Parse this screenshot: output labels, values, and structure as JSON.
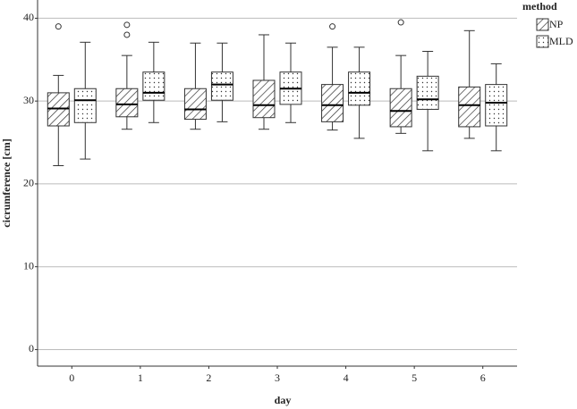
{
  "chart_data": {
    "type": "boxplot",
    "x_label": "day",
    "y_label": "cicrumference [cm]",
    "categories": [
      "0",
      "1",
      "2",
      "3",
      "4",
      "5",
      "6"
    ],
    "ylim": [
      -2,
      42.2
    ],
    "yticks": [
      0,
      10,
      20,
      30,
      40
    ],
    "grid": true,
    "legend_title": "method",
    "legend_position": "right",
    "series": [
      {
        "name": "NP",
        "pattern": "hatch",
        "boxes": [
          {
            "min": 22.2,
            "q1": 27.0,
            "median": 29.1,
            "q3": 31.0,
            "max": 33.1,
            "outliers": [
              39.0
            ]
          },
          {
            "min": 26.6,
            "q1": 28.1,
            "median": 29.6,
            "q3": 31.5,
            "max": 35.5,
            "outliers": [
              39.2,
              38.0
            ]
          },
          {
            "min": 26.6,
            "q1": 27.8,
            "median": 29.0,
            "q3": 31.5,
            "max": 37.0,
            "outliers": []
          },
          {
            "min": 26.6,
            "q1": 28.0,
            "median": 29.5,
            "q3": 32.5,
            "max": 38.0,
            "outliers": []
          },
          {
            "min": 26.5,
            "q1": 27.5,
            "median": 29.5,
            "q3": 32.0,
            "max": 36.5,
            "outliers": [
              39.0
            ]
          },
          {
            "min": 26.1,
            "q1": 26.9,
            "median": 28.8,
            "q3": 31.5,
            "max": 35.5,
            "outliers": [
              39.5
            ]
          },
          {
            "min": 25.5,
            "q1": 26.9,
            "median": 29.5,
            "q3": 31.7,
            "max": 38.5,
            "outliers": []
          }
        ]
      },
      {
        "name": "MLD",
        "pattern": "dots",
        "boxes": [
          {
            "min": 23.0,
            "q1": 27.4,
            "median": 30.1,
            "q3": 31.5,
            "max": 37.1,
            "outliers": []
          },
          {
            "min": 27.4,
            "q1": 30.1,
            "median": 31.0,
            "q3": 33.5,
            "max": 37.1,
            "outliers": []
          },
          {
            "min": 27.5,
            "q1": 30.1,
            "median": 32.0,
            "q3": 33.5,
            "max": 37.0,
            "outliers": []
          },
          {
            "min": 27.4,
            "q1": 29.6,
            "median": 31.5,
            "q3": 33.5,
            "max": 37.0,
            "outliers": []
          },
          {
            "min": 25.5,
            "q1": 29.5,
            "median": 31.0,
            "q3": 33.5,
            "max": 36.5,
            "outliers": []
          },
          {
            "min": 24.0,
            "q1": 29.0,
            "median": 30.2,
            "q3": 33.0,
            "max": 36.0,
            "outliers": []
          },
          {
            "min": 24.0,
            "q1": 27.0,
            "median": 29.8,
            "q3": 32.0,
            "max": 34.5,
            "outliers": []
          }
        ]
      }
    ]
  }
}
